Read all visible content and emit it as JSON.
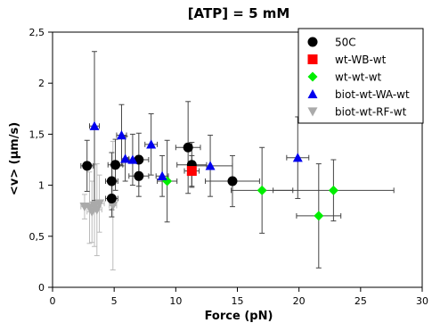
{
  "chart_data": {
    "type": "scatter",
    "title": "[ATP] = 5 mM",
    "xlabel": "Force (pN)",
    "ylabel": "<v> (µm/s)",
    "xlim": [
      0,
      30
    ],
    "ylim": [
      0,
      2.5
    ],
    "x_ticks": [
      0,
      5,
      10,
      15,
      20,
      25,
      30
    ],
    "x_tick_labels": [
      "0",
      "5",
      "10",
      "15",
      "20",
      "25",
      "30"
    ],
    "y_ticks": [
      0,
      0.5,
      1,
      1.5,
      2,
      2.5
    ],
    "y_tick_labels": [
      "0",
      "0,5",
      "1",
      "1,5",
      "2",
      "2,5"
    ],
    "grid": false,
    "legend_position": "top-right",
    "series": [
      {
        "name": "50C",
        "marker": "circle",
        "color": "#000000",
        "points": [
          {
            "x": 2.8,
            "y": 1.19,
            "xerr": 0.5,
            "yerr": 0.25
          },
          {
            "x": 4.8,
            "y": 1.04,
            "xerr": 0.5,
            "yerr": 0.28
          },
          {
            "x": 4.8,
            "y": 0.87,
            "xerr": 0.5,
            "yerr": 0.18
          },
          {
            "x": 5.1,
            "y": 1.2,
            "xerr": 0.6,
            "yerr": 0.25
          },
          {
            "x": 7.0,
            "y": 1.25,
            "xerr": 0.8,
            "yerr": 0.26
          },
          {
            "x": 7.0,
            "y": 1.09,
            "xerr": 0.8,
            "yerr": 0.2
          },
          {
            "x": 11.0,
            "y": 1.37,
            "xerr": 1.0,
            "yerr": 0.45
          },
          {
            "x": 11.3,
            "y": 1.2,
            "xerr": 1.2,
            "yerr": 0.22
          },
          {
            "x": 14.6,
            "y": 1.04,
            "xerr": 2.2,
            "yerr": 0.25
          }
        ]
      },
      {
        "name": "wt-WB-wt",
        "marker": "square",
        "color": "#ff0000",
        "points": [
          {
            "x": 11.3,
            "y": 1.14,
            "xerr": 0.6,
            "yerr": 0.15
          }
        ]
      },
      {
        "name": "wt-wt-wt",
        "marker": "diamond",
        "color": "#00ee00",
        "points": [
          {
            "x": 9.3,
            "y": 1.04,
            "xerr": 0.8,
            "yerr": 0.4
          },
          {
            "x": 17.0,
            "y": 0.95,
            "xerr": 2.5,
            "yerr": 0.42
          },
          {
            "x": 21.6,
            "y": 0.7,
            "xerr": 1.8,
            "yerr": 0.51
          },
          {
            "x": 22.8,
            "y": 0.95,
            "xerr": 4.9,
            "yerr": 0.3
          }
        ]
      },
      {
        "name": "biot-wt-WA-wt",
        "marker": "triangle-up",
        "color": "#0000ee",
        "points": [
          {
            "x": 3.4,
            "y": 1.58,
            "xerr": 0.4,
            "yerr": 0.73
          },
          {
            "x": 5.6,
            "y": 1.49,
            "xerr": 0.4,
            "yerr": 0.3
          },
          {
            "x": 5.9,
            "y": 1.26,
            "xerr": 0.3,
            "yerr": 0.22
          },
          {
            "x": 6.5,
            "y": 1.25,
            "xerr": 0.4,
            "yerr": 0.25
          },
          {
            "x": 8.0,
            "y": 1.4,
            "xerr": 0.5,
            "yerr": 0.3
          },
          {
            "x": 8.9,
            "y": 1.09,
            "xerr": 0.5,
            "yerr": 0.2
          },
          {
            "x": 12.8,
            "y": 1.19,
            "xerr": 1.8,
            "yerr": 0.3
          },
          {
            "x": 19.9,
            "y": 1.27,
            "xerr": 0.9,
            "yerr": 0.4
          }
        ]
      },
      {
        "name": "biot-wt-RF-wt",
        "marker": "triangle-down",
        "color": "#aaaaaa",
        "points": [
          {
            "x": 2.6,
            "y": 0.79,
            "xerr": 0.3,
            "yerr": 0.12
          },
          {
            "x": 3.0,
            "y": 0.78,
            "xerr": 0.4,
            "yerr": 0.35
          },
          {
            "x": 3.2,
            "y": 0.74,
            "xerr": 0.4,
            "yerr": 0.3
          },
          {
            "x": 3.4,
            "y": 0.8,
            "xerr": 0.4,
            "yerr": 0.4
          },
          {
            "x": 3.6,
            "y": 0.76,
            "xerr": 0.4,
            "yerr": 0.45
          },
          {
            "x": 3.8,
            "y": 0.82,
            "xerr": 0.4,
            "yerr": 0.28
          },
          {
            "x": 4.9,
            "y": 0.8,
            "xerr": 0.3,
            "yerr": 0.63
          }
        ]
      }
    ]
  }
}
